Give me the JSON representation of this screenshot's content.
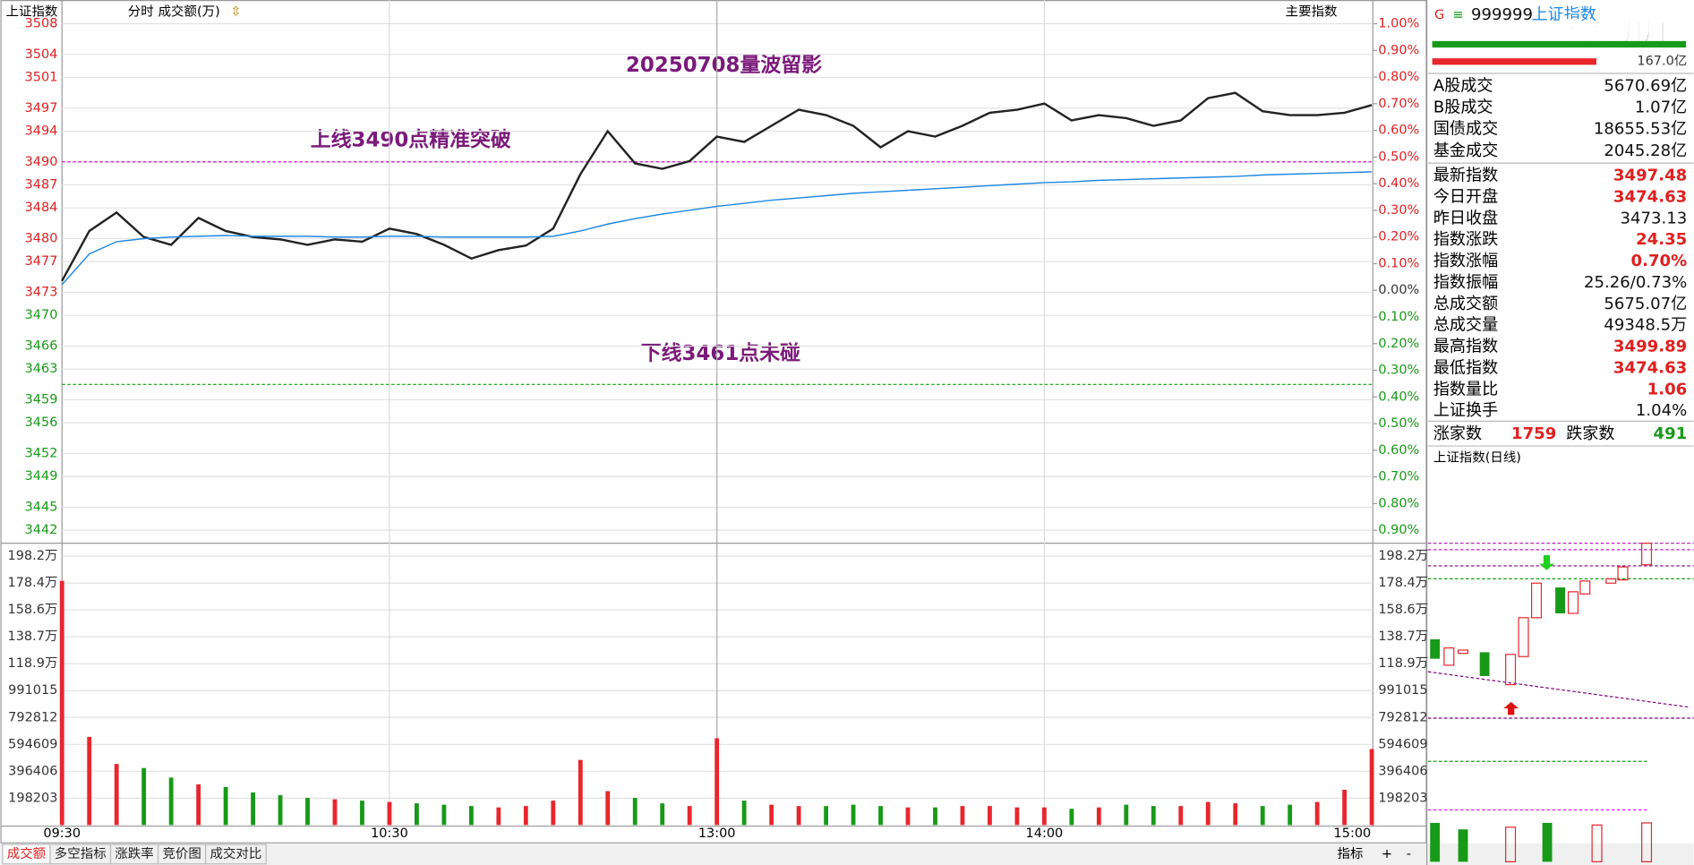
{
  "header": {
    "title": "上证指数",
    "tabs": [
      "分时",
      "成交额(万)"
    ],
    "right": "主要指数"
  },
  "annotations": [
    "20250708量波留影",
    "上线3490点精准突破",
    "下线3461点未碰"
  ],
  "price_chart": {
    "type": "line",
    "xlim": [
      0,
      240
    ],
    "xticks": [
      {
        "value": 0,
        "label": "09:30"
      },
      {
        "value": 60,
        "label": "10:30"
      },
      {
        "value": 120,
        "label": "13:00"
      },
      {
        "value": 180,
        "label": "14:00"
      },
      {
        "value": 240,
        "label": "15:00"
      }
    ],
    "x": [
      0,
      5,
      10,
      15,
      20,
      25,
      30,
      35,
      40,
      45,
      50,
      55,
      60,
      65,
      70,
      75,
      80,
      85,
      90,
      95,
      100,
      105,
      110,
      115,
      120,
      125,
      130,
      135,
      140,
      145,
      150,
      155,
      160,
      165,
      170,
      175,
      180,
      185,
      190,
      195,
      200,
      205,
      210,
      215,
      220,
      225,
      230,
      235,
      240
    ],
    "ylim": [
      3442,
      3508
    ],
    "yticks": [
      3508,
      3504,
      3501,
      3497,
      3494,
      3490,
      3487,
      3484,
      3480,
      3477,
      3473,
      3470,
      3466,
      3463,
      3459,
      3456,
      3452,
      3449,
      3445,
      3442
    ],
    "y2lim": [
      -0.9,
      1.0
    ],
    "y2ticks": [
      {
        "value": 1.0,
        "label": "1.00%"
      },
      {
        "value": 0.9,
        "label": "0.90%"
      },
      {
        "value": 0.8,
        "label": "0.80%"
      },
      {
        "value": 0.7,
        "label": "0.70%"
      },
      {
        "value": 0.6,
        "label": "0.60%"
      },
      {
        "value": 0.5,
        "label": "0.50%"
      },
      {
        "value": 0.4,
        "label": "0.40%"
      },
      {
        "value": 0.3,
        "label": "0.30%"
      },
      {
        "value": 0.2,
        "label": "0.20%"
      },
      {
        "value": 0.1,
        "label": "0.10%"
      },
      {
        "value": 0,
        "label": "0.00%"
      },
      {
        "value": -0.1,
        "label": "0.10%"
      },
      {
        "value": -0.2,
        "label": "0.20%"
      },
      {
        "value": -0.3,
        "label": "0.30%"
      },
      {
        "value": -0.4,
        "label": "0.40%"
      },
      {
        "value": -0.5,
        "label": "0.50%"
      },
      {
        "value": -0.6,
        "label": "0.60%"
      },
      {
        "value": -0.7,
        "label": "0.70%"
      },
      {
        "value": -0.8,
        "label": "0.80%"
      },
      {
        "value": -0.9,
        "label": "0.90%"
      }
    ],
    "series": [
      {
        "color": "#222222",
        "values": [
          3474.5,
          3481,
          3483.4,
          3480.2,
          3479.2,
          3482.7,
          3481,
          3480.2,
          3479.9,
          3479.2,
          3479.9,
          3479.6,
          3481.3,
          3480.6,
          3479.2,
          3477.4,
          3478.5,
          3479.1,
          3481.3,
          3488.4,
          3494,
          3489.8,
          3489.1,
          3490.1,
          3493.3,
          3492.6,
          3494.7,
          3496.8,
          3496.1,
          3494.7,
          3491.9,
          3494,
          3493.3,
          3494.7,
          3496.4,
          3496.8,
          3497.6,
          3495.4,
          3496.1,
          3495.7,
          3494.7,
          3495.4,
          3498.3,
          3499,
          3496.6,
          3496.1,
          3496.1,
          3496.4,
          3497.4
        ]
      },
      {
        "color": "#1e88e5",
        "values": [
          3474,
          3478,
          3479.6,
          3480,
          3480.2,
          3480.3,
          3480.4,
          3480.3,
          3480.3,
          3480.3,
          3480.2,
          3480.2,
          3480.3,
          3480.3,
          3480.2,
          3480.2,
          3480.2,
          3480.2,
          3480.3,
          3481,
          3481.9,
          3482.6,
          3483.2,
          3483.7,
          3484.2,
          3484.6,
          3485,
          3485.3,
          3485.6,
          3485.9,
          3486.1,
          3486.3,
          3486.5,
          3486.7,
          3486.9,
          3487.1,
          3487.3,
          3487.4,
          3487.6,
          3487.7,
          3487.8,
          3487.9,
          3488,
          3488.1,
          3488.3,
          3488.4,
          3488.5,
          3488.6,
          3488.7
        ]
      }
    ],
    "reference_lines": [
      {
        "value": 3490,
        "color": "#c020c0"
      },
      {
        "value": 3461,
        "color": "#10a010"
      }
    ]
  },
  "volume_chart": {
    "type": "bar",
    "ylim": [
      0,
      1982030
    ],
    "yticks": [
      {
        "value": 1982030,
        "label": "198.2万"
      },
      {
        "value": 1784000,
        "label": "178.4万"
      },
      {
        "value": 1586000,
        "label": "158.6万"
      },
      {
        "value": 1387000,
        "label": "138.7万"
      },
      {
        "value": 1189000,
        "label": "118.9万"
      },
      991015,
      792812,
      594609,
      396406,
      198203
    ],
    "values": [
      1800000,
      650000,
      450000,
      420000,
      350000,
      300000,
      280000,
      240000,
      220000,
      200000,
      190000,
      180000,
      170000,
      160000,
      150000,
      140000,
      130000,
      140000,
      180000,
      480000,
      250000,
      200000,
      160000,
      140000,
      640000,
      180000,
      150000,
      140000,
      140000,
      150000,
      140000,
      130000,
      130000,
      140000,
      140000,
      130000,
      130000,
      120000,
      130000,
      150000,
      140000,
      140000,
      170000,
      160000,
      140000,
      150000,
      170000,
      260000,
      560000
    ],
    "up_color": "#e8262c",
    "down_color": "#179a17"
  },
  "bottom_tabs": [
    "成交额",
    "多空指标",
    "涨跌率",
    "竞价图",
    "成交对比"
  ],
  "bottom_right": [
    "指标",
    "+",
    "-"
  ],
  "panel": {
    "g": "G",
    "menu": "≡",
    "code": "999999",
    "name": "上证指数",
    "watermark": "股海明灯",
    "amount": "167.0亿",
    "turnover": [
      {
        "label": "A股成交",
        "value": "5670.69亿",
        "color": "black"
      },
      {
        "label": "B股成交",
        "value": "1.07亿",
        "color": "black"
      },
      {
        "label": "国债成交",
        "value": "18655.53亿",
        "color": "black"
      },
      {
        "label": "基金成交",
        "value": "2045.28亿",
        "color": "black"
      }
    ],
    "stats": [
      {
        "label": "最新指数",
        "value": "3497.48",
        "color": "red"
      },
      {
        "label": "今日开盘",
        "value": "3474.63",
        "color": "red"
      },
      {
        "label": "昨日收盘",
        "value": "3473.13",
        "color": "black"
      },
      {
        "label": "指数涨跌",
        "value": "24.35",
        "color": "red"
      },
      {
        "label": "指数涨幅",
        "value": "0.70%",
        "color": "red"
      },
      {
        "label": "指数振幅",
        "value": "25.26/0.73%",
        "color": "black"
      },
      {
        "label": "总成交额",
        "value": "5675.07亿",
        "color": "black"
      },
      {
        "label": "总成交量",
        "value": "49348.5万",
        "color": "black"
      },
      {
        "label": "最高指数",
        "value": "3499.89",
        "color": "red"
      },
      {
        "label": "最低指数",
        "value": "3474.63",
        "color": "red"
      },
      {
        "label": "指数量比",
        "value": "1.06",
        "color": "red"
      },
      {
        "label": "上证换手",
        "value": "1.04%",
        "color": "black"
      }
    ],
    "breadth": {
      "up_label": "涨家数",
      "up": "1759",
      "down_label": "跌家数",
      "down": "491"
    },
    "daily_title": "上证指数(日线)"
  }
}
